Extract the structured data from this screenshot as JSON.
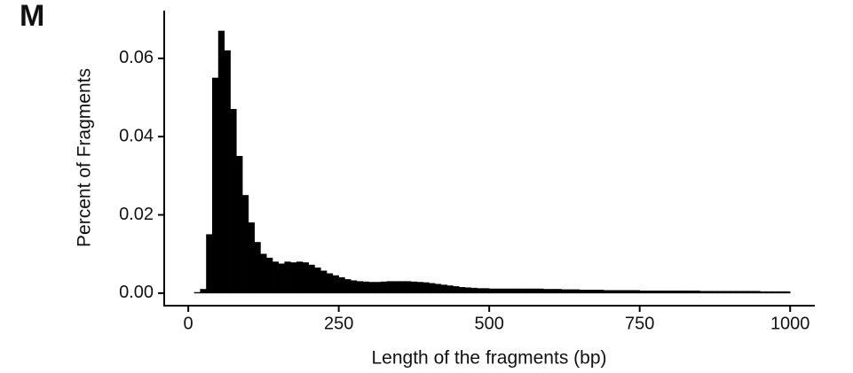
{
  "chart_data": {
    "type": "histogram",
    "title": "M",
    "xlabel": "Length of the fragments (bp)",
    "ylabel": "Percent of Fragments",
    "bins": [
      10,
      20,
      30,
      40,
      50,
      60,
      70,
      80,
      90,
      100,
      110,
      120,
      130,
      140,
      150,
      160,
      170,
      180,
      190,
      200,
      210,
      220,
      230,
      240,
      250,
      260,
      270,
      280,
      290,
      300,
      310,
      320,
      330,
      340,
      350,
      360,
      370,
      380,
      390,
      400,
      410,
      420,
      430,
      440,
      450,
      460,
      470,
      480,
      490,
      500,
      510,
      520,
      530,
      540,
      550,
      560,
      570,
      580,
      590,
      600,
      610,
      620,
      630,
      640,
      650,
      660,
      670,
      680,
      690,
      700,
      710,
      720,
      730,
      740,
      750,
      760,
      770,
      780,
      790,
      800,
      810,
      820,
      830,
      840,
      850,
      860,
      870,
      880,
      890,
      900,
      910,
      920,
      930,
      940,
      950,
      960,
      970,
      980,
      990,
      1000
    ],
    "values": [
      0.0002,
      0.001,
      0.015,
      0.055,
      0.067,
      0.062,
      0.047,
      0.035,
      0.025,
      0.018,
      0.013,
      0.01,
      0.009,
      0.008,
      0.0075,
      0.008,
      0.0078,
      0.008,
      0.0078,
      0.0072,
      0.0065,
      0.0057,
      0.005,
      0.0045,
      0.004,
      0.0035,
      0.0032,
      0.003,
      0.0029,
      0.0028,
      0.0028,
      0.0029,
      0.003,
      0.003,
      0.003,
      0.003,
      0.0029,
      0.0028,
      0.0027,
      0.0025,
      0.0023,
      0.0021,
      0.0019,
      0.0017,
      0.0015,
      0.0014,
      0.0013,
      0.0012,
      0.0012,
      0.0011,
      0.0011,
      0.0011,
      0.0011,
      0.0011,
      0.0011,
      0.0011,
      0.0011,
      0.0011,
      0.001,
      0.001,
      0.001,
      0.0009,
      0.0009,
      0.0009,
      0.0008,
      0.0008,
      0.0008,
      0.0008,
      0.0007,
      0.0007,
      0.0007,
      0.0007,
      0.0007,
      0.0007,
      0.0006,
      0.0006,
      0.0006,
      0.0006,
      0.0006,
      0.0006,
      0.0006,
      0.0006,
      0.0006,
      0.0006,
      0.0005,
      0.0005,
      0.0005,
      0.0005,
      0.0005,
      0.0005,
      0.0005,
      0.0005,
      0.0005,
      0.0005,
      0.0004,
      0.0004,
      0.0004,
      0.0004,
      0.0004
    ],
    "color": "#000000",
    "xlim": [
      -40,
      1041
    ],
    "ylim": [
      -0.0032,
      0.0722
    ],
    "xticks": [
      0,
      250,
      500,
      750,
      1000
    ],
    "yticks": [
      {
        "value": 0,
        "label": "0.00"
      },
      0.02,
      0.04,
      0.06
    ],
    "grid": false
  }
}
